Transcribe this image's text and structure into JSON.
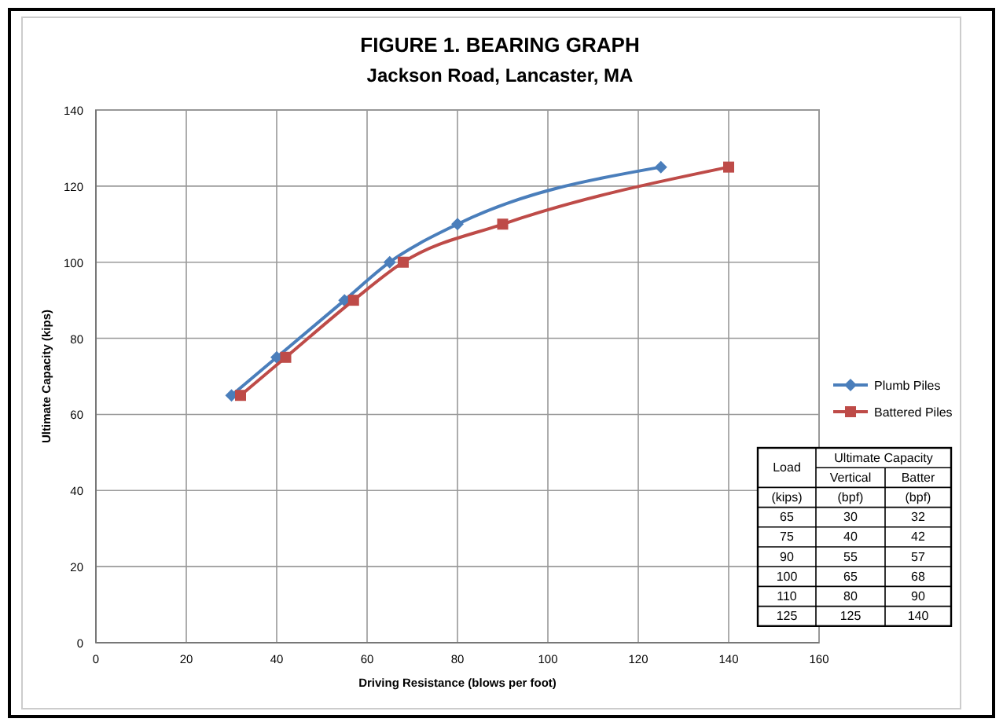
{
  "chart_data": [
    {
      "type": "line",
      "title": "FIGURE 1.  BEARING GRAPH",
      "subtitle": "Jackson Road, Lancaster, MA",
      "xlabel": "Driving Resistance (blows per foot)",
      "ylabel": "Ultimate Capacity (kips)",
      "series": [
        {
          "name": "Plumb Piles",
          "color": "#4a7ebb",
          "marker": "diamond",
          "x": [
            30,
            40,
            55,
            65,
            80,
            125
          ],
          "values": [
            65,
            75,
            90,
            100,
            110,
            125
          ]
        },
        {
          "name": "Battered Piles",
          "color": "#be4b48",
          "marker": "square",
          "x": [
            32,
            42,
            57,
            68,
            90,
            140
          ],
          "values": [
            65,
            75,
            90,
            100,
            110,
            125
          ]
        }
      ],
      "xlim": [
        0,
        160
      ],
      "xticks": [
        0,
        20,
        40,
        60,
        80,
        100,
        120,
        140,
        160
      ],
      "ylim": [
        0,
        140
      ],
      "yticks": [
        0,
        20,
        40,
        60,
        80,
        100,
        120,
        140
      ],
      "grid": true,
      "legend": "right",
      "line_style": "solid"
    },
    {
      "type": "other",
      "annotations": [
        "Load",
        "(kips)",
        "Ultimate Capacity",
        "Vertical",
        "(bpf)",
        "Batter",
        "(bpf)",
        "65",
        "30",
        "32",
        "75",
        "40",
        "42",
        "90",
        "55",
        "57",
        "100",
        "65",
        "68",
        "110",
        "80",
        "90",
        "125",
        "125",
        "140"
      ]
    }
  ]
}
